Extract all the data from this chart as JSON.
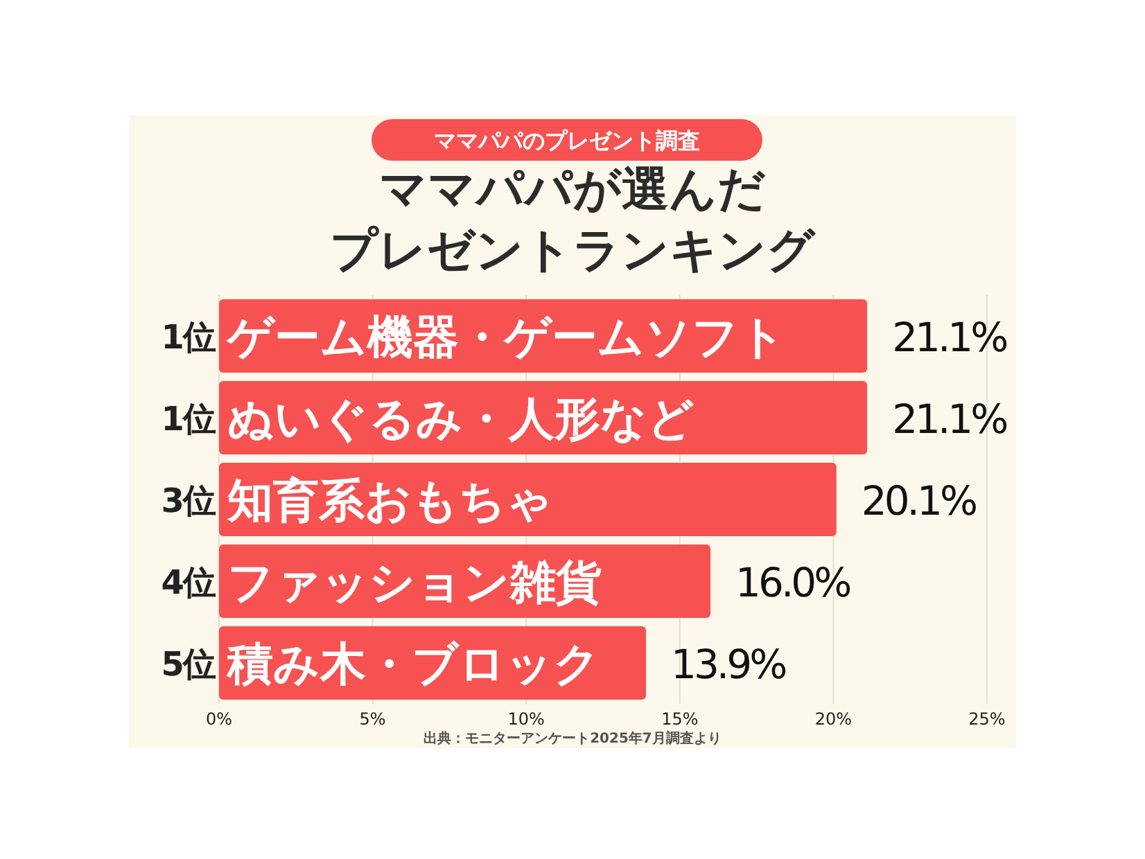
{
  "chart_data": {
    "type": "bar",
    "orientation": "horizontal",
    "subtitle": "ママパパのプレゼント調査",
    "title": "ママパパが選んだプレゼントランキング",
    "categories": [
      "ゲーム機器・ゲームソフト",
      "ぬいぐるみ・人形など",
      "知育系おもちゃ",
      "ファッション雑貨",
      "積み木・ブロック"
    ],
    "values": [
      21.1,
      21.1,
      20.1,
      16.0,
      13.9
    ],
    "value_labels": [
      "21.1%",
      "21.1%",
      "20.1%",
      "16.0%",
      "13.9%"
    ],
    "color": "#f65252",
    "xlim": [
      0,
      25
    ],
    "xticks": [
      {
        "value": 0,
        "label": "0%"
      },
      {
        "value": 5,
        "label": "5%"
      },
      {
        "value": 10,
        "label": "10%"
      },
      {
        "value": 15,
        "label": "15%"
      },
      {
        "value": 20,
        "label": "20%"
      },
      {
        "value": 25,
        "label": "25%"
      }
    ],
    "grid": "x",
    "annotations": [
      "1位",
      "1位",
      "3位",
      "4位",
      "5位",
      "出典：モニターアンケート2025年7月調査より"
    ]
  }
}
